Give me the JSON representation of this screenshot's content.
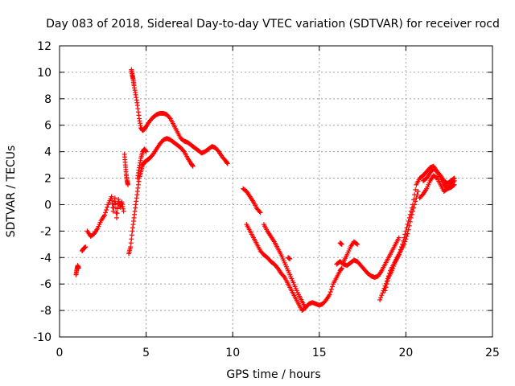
{
  "chart_data": {
    "type": "scatter",
    "title": "Day 083 of 2018, Sidereal Day-to-day VTEC variation (SDTVAR) for receiver rocd",
    "xlabel": "GPS time / hours",
    "ylabel": "SDTVAR / TECUs",
    "xlim": [
      0,
      25
    ],
    "ylim": [
      -10,
      12
    ],
    "xticks": [
      "0",
      "5",
      "10",
      "15",
      "20",
      "25"
    ],
    "yticks": [
      "12",
      "10",
      "8",
      "6",
      "4",
      "2",
      "0",
      "-2",
      "-4",
      "-6",
      "-8",
      "-10"
    ],
    "grid": true,
    "marker": "+",
    "color": "#ff0000",
    "series": [
      {
        "name": "seg1",
        "x": [
          0.95,
          1.0,
          1.05,
          1.1
        ],
        "y": [
          -5.3,
          -4.9,
          -4.6,
          -4.8
        ]
      },
      {
        "name": "seg2",
        "x": [
          1.3,
          1.4,
          1.5
        ],
        "y": [
          -3.5,
          -3.3,
          -3.2
        ]
      },
      {
        "name": "seg3",
        "x": [
          1.6,
          1.8,
          2.0,
          2.2,
          2.4,
          2.6,
          2.8,
          3.0,
          3.1,
          3.2,
          3.3,
          3.4,
          3.5,
          3.6,
          3.7
        ],
        "y": [
          -2.0,
          -2.4,
          -2.2,
          -1.8,
          -1.2,
          -0.8,
          0.0,
          0.6,
          -0.5,
          0.5,
          -1.0,
          0.4,
          -0.2,
          0.2,
          -0.5
        ]
      },
      {
        "name": "seg4",
        "x": [
          3.75,
          3.8,
          3.85,
          3.9,
          3.95
        ],
        "y": [
          3.8,
          3.0,
          2.3,
          1.8,
          1.5
        ]
      },
      {
        "name": "seg5",
        "x": [
          4.0,
          4.1,
          4.2,
          4.3,
          4.4,
          4.5,
          4.6,
          4.7,
          4.8,
          4.9,
          5.0,
          5.1,
          5.2,
          5.4,
          5.6,
          5.8,
          6.0,
          6.2,
          6.4,
          6.6,
          6.8,
          7.0,
          7.2,
          7.4,
          7.6,
          7.7
        ],
        "y": [
          -3.7,
          -3.2,
          -2.0,
          -1.0,
          0.0,
          1.0,
          2.0,
          2.5,
          3.0,
          3.2,
          3.3,
          3.4,
          3.5,
          3.8,
          4.2,
          4.6,
          4.9,
          5.0,
          4.9,
          4.7,
          4.5,
          4.3,
          4.0,
          3.5,
          3.1,
          2.9
        ]
      },
      {
        "name": "seg6",
        "x": [
          4.15,
          4.2,
          4.25,
          4.3,
          4.4,
          4.5,
          4.6,
          4.7,
          4.8,
          4.9,
          5.0,
          5.2,
          5.4,
          5.6,
          5.8,
          6.0,
          6.2,
          6.4,
          6.6,
          6.8,
          7.0,
          7.2,
          7.4,
          7.6,
          7.8,
          8.0,
          8.2,
          8.4,
          8.6,
          8.8,
          9.0,
          9.2,
          9.4,
          9.6,
          9.7
        ],
        "y": [
          10.2,
          9.8,
          9.5,
          9.0,
          8.3,
          7.5,
          6.5,
          5.8,
          5.6,
          5.7,
          5.9,
          6.3,
          6.6,
          6.8,
          6.9,
          6.9,
          6.8,
          6.5,
          6.0,
          5.5,
          5.0,
          4.8,
          4.7,
          4.5,
          4.3,
          4.1,
          3.9,
          4.0,
          4.2,
          4.4,
          4.3,
          4.0,
          3.6,
          3.3,
          3.1
        ]
      },
      {
        "name": "seg7",
        "x": [
          4.5,
          4.6,
          4.7,
          4.8,
          4.9,
          5.0
        ],
        "y": [
          2.0,
          2.8,
          3.5,
          4.0,
          4.2,
          4.0
        ]
      },
      {
        "name": "seg8",
        "x": [
          10.6,
          10.8,
          11.0,
          11.2,
          11.4,
          11.6
        ],
        "y": [
          1.2,
          1.0,
          0.6,
          0.2,
          -0.3,
          -0.6
        ]
      },
      {
        "name": "seg9",
        "x": [
          10.8,
          11.0,
          11.2,
          11.4,
          11.6,
          11.8,
          12.0,
          12.2,
          12.4,
          12.6,
          12.8,
          13.0,
          13.2,
          13.4,
          13.6,
          13.8,
          14.0,
          14.2,
          14.4,
          14.6,
          14.8,
          15.0,
          15.2,
          15.4,
          15.6,
          15.8,
          16.0,
          16.2,
          16.3
        ],
        "y": [
          -1.5,
          -2.0,
          -2.5,
          -3.0,
          -3.5,
          -3.8,
          -4.0,
          -4.3,
          -4.5,
          -4.8,
          -5.2,
          -5.5,
          -6.0,
          -6.5,
          -7.0,
          -7.5,
          -8.0,
          -7.8,
          -7.5,
          -7.4,
          -7.5,
          -7.6,
          -7.5,
          -7.2,
          -6.8,
          -6.0,
          -5.5,
          -5.0,
          -4.8
        ]
      },
      {
        "name": "seg10",
        "x": [
          11.8,
          12.0,
          12.2,
          12.4,
          12.6,
          12.8,
          13.0,
          13.2,
          13.4,
          13.6,
          13.8,
          14.0,
          14.2
        ],
        "y": [
          -1.5,
          -2.0,
          -2.4,
          -2.8,
          -3.3,
          -3.8,
          -4.4,
          -5.0,
          -5.6,
          -6.2,
          -6.8,
          -7.3,
          -7.8
        ]
      },
      {
        "name": "seg11",
        "x": [
          13.2,
          13.3
        ],
        "y": [
          -4.0,
          -4.1
        ]
      },
      {
        "name": "seg12",
        "x": [
          16.0,
          16.2,
          16.4,
          16.6,
          16.8,
          17.0,
          17.2,
          17.4,
          17.6,
          17.8,
          18.0,
          18.2,
          18.4,
          18.6,
          18.8,
          19.0,
          19.2,
          19.4,
          19.6
        ],
        "y": [
          -4.5,
          -4.3,
          -4.5,
          -4.6,
          -4.4,
          -4.2,
          -4.3,
          -4.6,
          -4.9,
          -5.2,
          -5.4,
          -5.5,
          -5.4,
          -5.0,
          -4.5,
          -4.0,
          -3.5,
          -3.0,
          -2.5
        ]
      },
      {
        "name": "seg13",
        "x": [
          16.4,
          16.6,
          16.8,
          17.0,
          17.2
        ],
        "y": [
          -4.3,
          -3.8,
          -3.2,
          -2.8,
          -3.0
        ]
      },
      {
        "name": "seg14",
        "x": [
          16.2,
          16.3
        ],
        "y": [
          -2.9,
          -3.0
        ]
      },
      {
        "name": "seg15",
        "x": [
          18.5,
          18.7,
          18.9,
          19.1,
          19.3,
          19.5,
          19.7,
          19.9,
          20.1,
          20.3,
          20.5,
          20.7
        ],
        "y": [
          -7.2,
          -6.5,
          -5.8,
          -5.0,
          -4.5,
          -4.0,
          -3.5,
          -3.0,
          -2.2,
          -1.0,
          0.0,
          1.0
        ]
      },
      {
        "name": "seg16",
        "x": [
          18.8,
          19.0,
          19.2,
          19.4,
          19.6,
          19.8,
          20.0,
          20.2,
          20.4,
          20.6,
          20.8,
          21.0,
          21.2,
          21.4,
          21.6,
          21.8,
          22.0,
          22.2,
          22.4,
          22.6,
          22.8
        ],
        "y": [
          -6.5,
          -5.5,
          -5.0,
          -4.3,
          -3.8,
          -3.0,
          -2.0,
          -1.0,
          0.0,
          1.5,
          2.0,
          2.2,
          2.5,
          2.8,
          2.9,
          2.5,
          2.0,
          1.5,
          1.2,
          1.3,
          1.5
        ]
      },
      {
        "name": "seg17",
        "x": [
          20.8,
          21.0,
          21.2,
          21.4,
          21.6,
          21.8,
          22.0,
          22.2,
          22.4,
          22.6,
          22.8
        ],
        "y": [
          0.5,
          0.8,
          1.2,
          1.8,
          2.2,
          2.0,
          1.5,
          1.0,
          1.2,
          1.5,
          1.8
        ]
      },
      {
        "name": "seg18",
        "x": [
          21.0,
          21.2,
          21.4,
          21.6,
          21.8,
          22.0,
          22.2,
          22.4,
          22.6,
          22.8
        ],
        "y": [
          1.8,
          2.0,
          2.4,
          2.7,
          2.5,
          2.2,
          1.8,
          1.6,
          1.8,
          2.0
        ]
      }
    ]
  }
}
